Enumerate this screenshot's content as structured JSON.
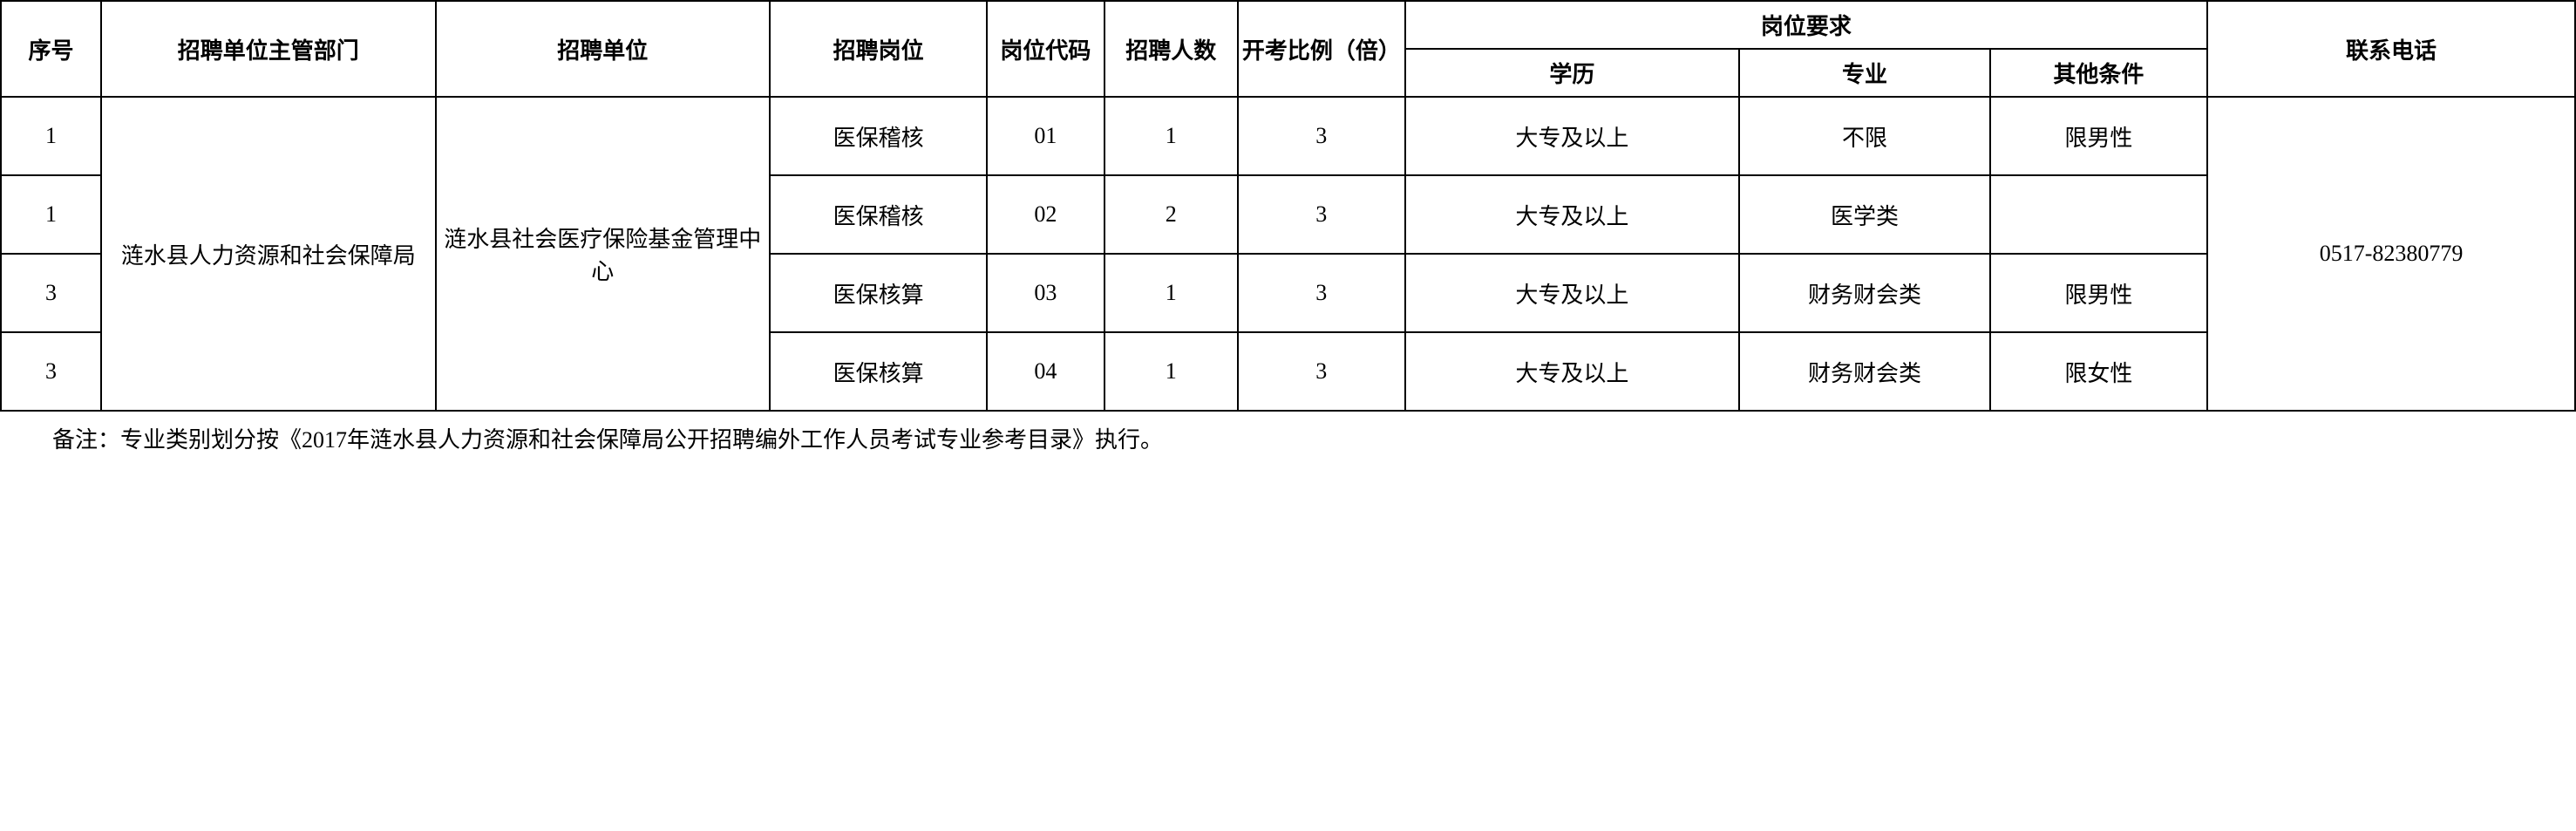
{
  "table": {
    "headers": {
      "seq": "序号",
      "dept": "招聘单位主管部门",
      "unit": "招聘单位",
      "position": "招聘岗位",
      "code": "岗位代码",
      "count": "招聘人数",
      "ratio": "开考比例（倍）",
      "requirements": "岗位要求",
      "education": "学历",
      "major": "专业",
      "other": "其他条件",
      "phone": "联系电话"
    },
    "merged": {
      "dept": "涟水县人力资源和社会保障局",
      "unit": "涟水县社会医疗保险基金管理中心",
      "phone": "0517-82380779"
    },
    "rows": [
      {
        "seq": "1",
        "position": "医保稽核",
        "code": "01",
        "count": "1",
        "ratio": "3",
        "education": "大专及以上",
        "major": "不限",
        "other": "限男性"
      },
      {
        "seq": "1",
        "position": "医保稽核",
        "code": "02",
        "count": "2",
        "ratio": "3",
        "education": "大专及以上",
        "major": "医学类",
        "other": ""
      },
      {
        "seq": "3",
        "position": "医保核算",
        "code": "03",
        "count": "1",
        "ratio": "3",
        "education": "大专及以上",
        "major": "财务财会类",
        "other": "限男性"
      },
      {
        "seq": "3",
        "position": "医保核算",
        "code": "04",
        "count": "1",
        "ratio": "3",
        "education": "大专及以上",
        "major": "财务财会类",
        "other": "限女性"
      }
    ]
  },
  "footnote": "备注：专业类别划分按《2017年涟水县人力资源和社会保障局公开招聘编外工作人员考试专业参考目录》执行。",
  "style": {
    "border_color": "#000000",
    "background_color": "#ffffff",
    "text_color": "#000000",
    "font_size_cell": 26,
    "font_size_footnote": 26,
    "border_width": 2
  }
}
